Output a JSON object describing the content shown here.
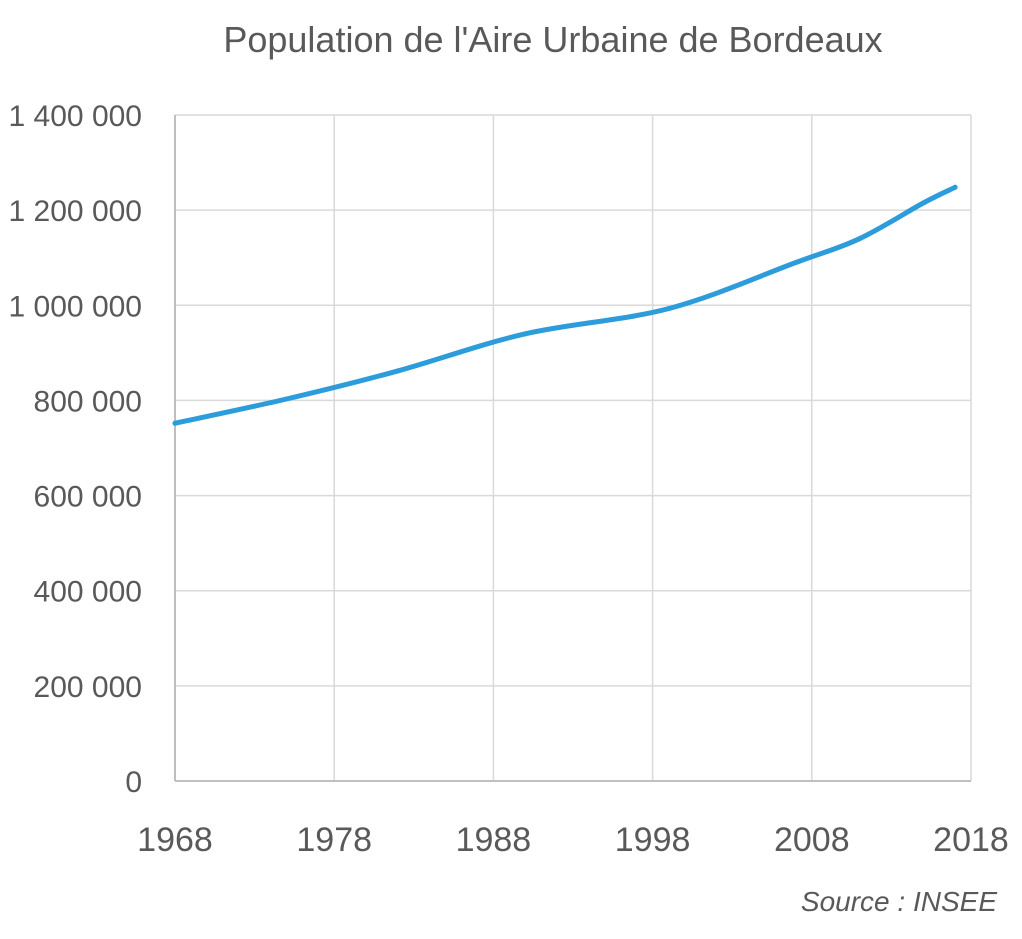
{
  "chart_data": {
    "type": "line",
    "title": "Population de l'Aire Urbaine de Bordeaux",
    "source": "Source : INSEE",
    "xlabel": "",
    "ylabel": "",
    "xlim": [
      1968,
      2018
    ],
    "ylim": [
      0,
      1400000
    ],
    "x_ticks": [
      1968,
      1978,
      1988,
      1998,
      2008,
      2018
    ],
    "x_tick_labels": [
      "1968",
      "1978",
      "1988",
      "1998",
      "2008",
      "2018"
    ],
    "y_ticks": [
      0,
      200000,
      400000,
      600000,
      800000,
      1000000,
      1200000,
      1400000
    ],
    "y_tick_labels": [
      "0",
      "200 000",
      "400 000",
      "600 000",
      "800 000",
      "1 000 000",
      "1 200 000",
      "1 400 000"
    ],
    "grid": true,
    "series": [
      {
        "color": "#2d9cdb",
        "x": [
          1968,
          1975,
          1982,
          1990,
          1999,
          2007,
          2011,
          2015,
          2017
        ],
        "values": [
          752000,
          803000,
          862000,
          940000,
          993000,
          1090000,
          1140000,
          1215000,
          1248000
        ]
      }
    ]
  }
}
